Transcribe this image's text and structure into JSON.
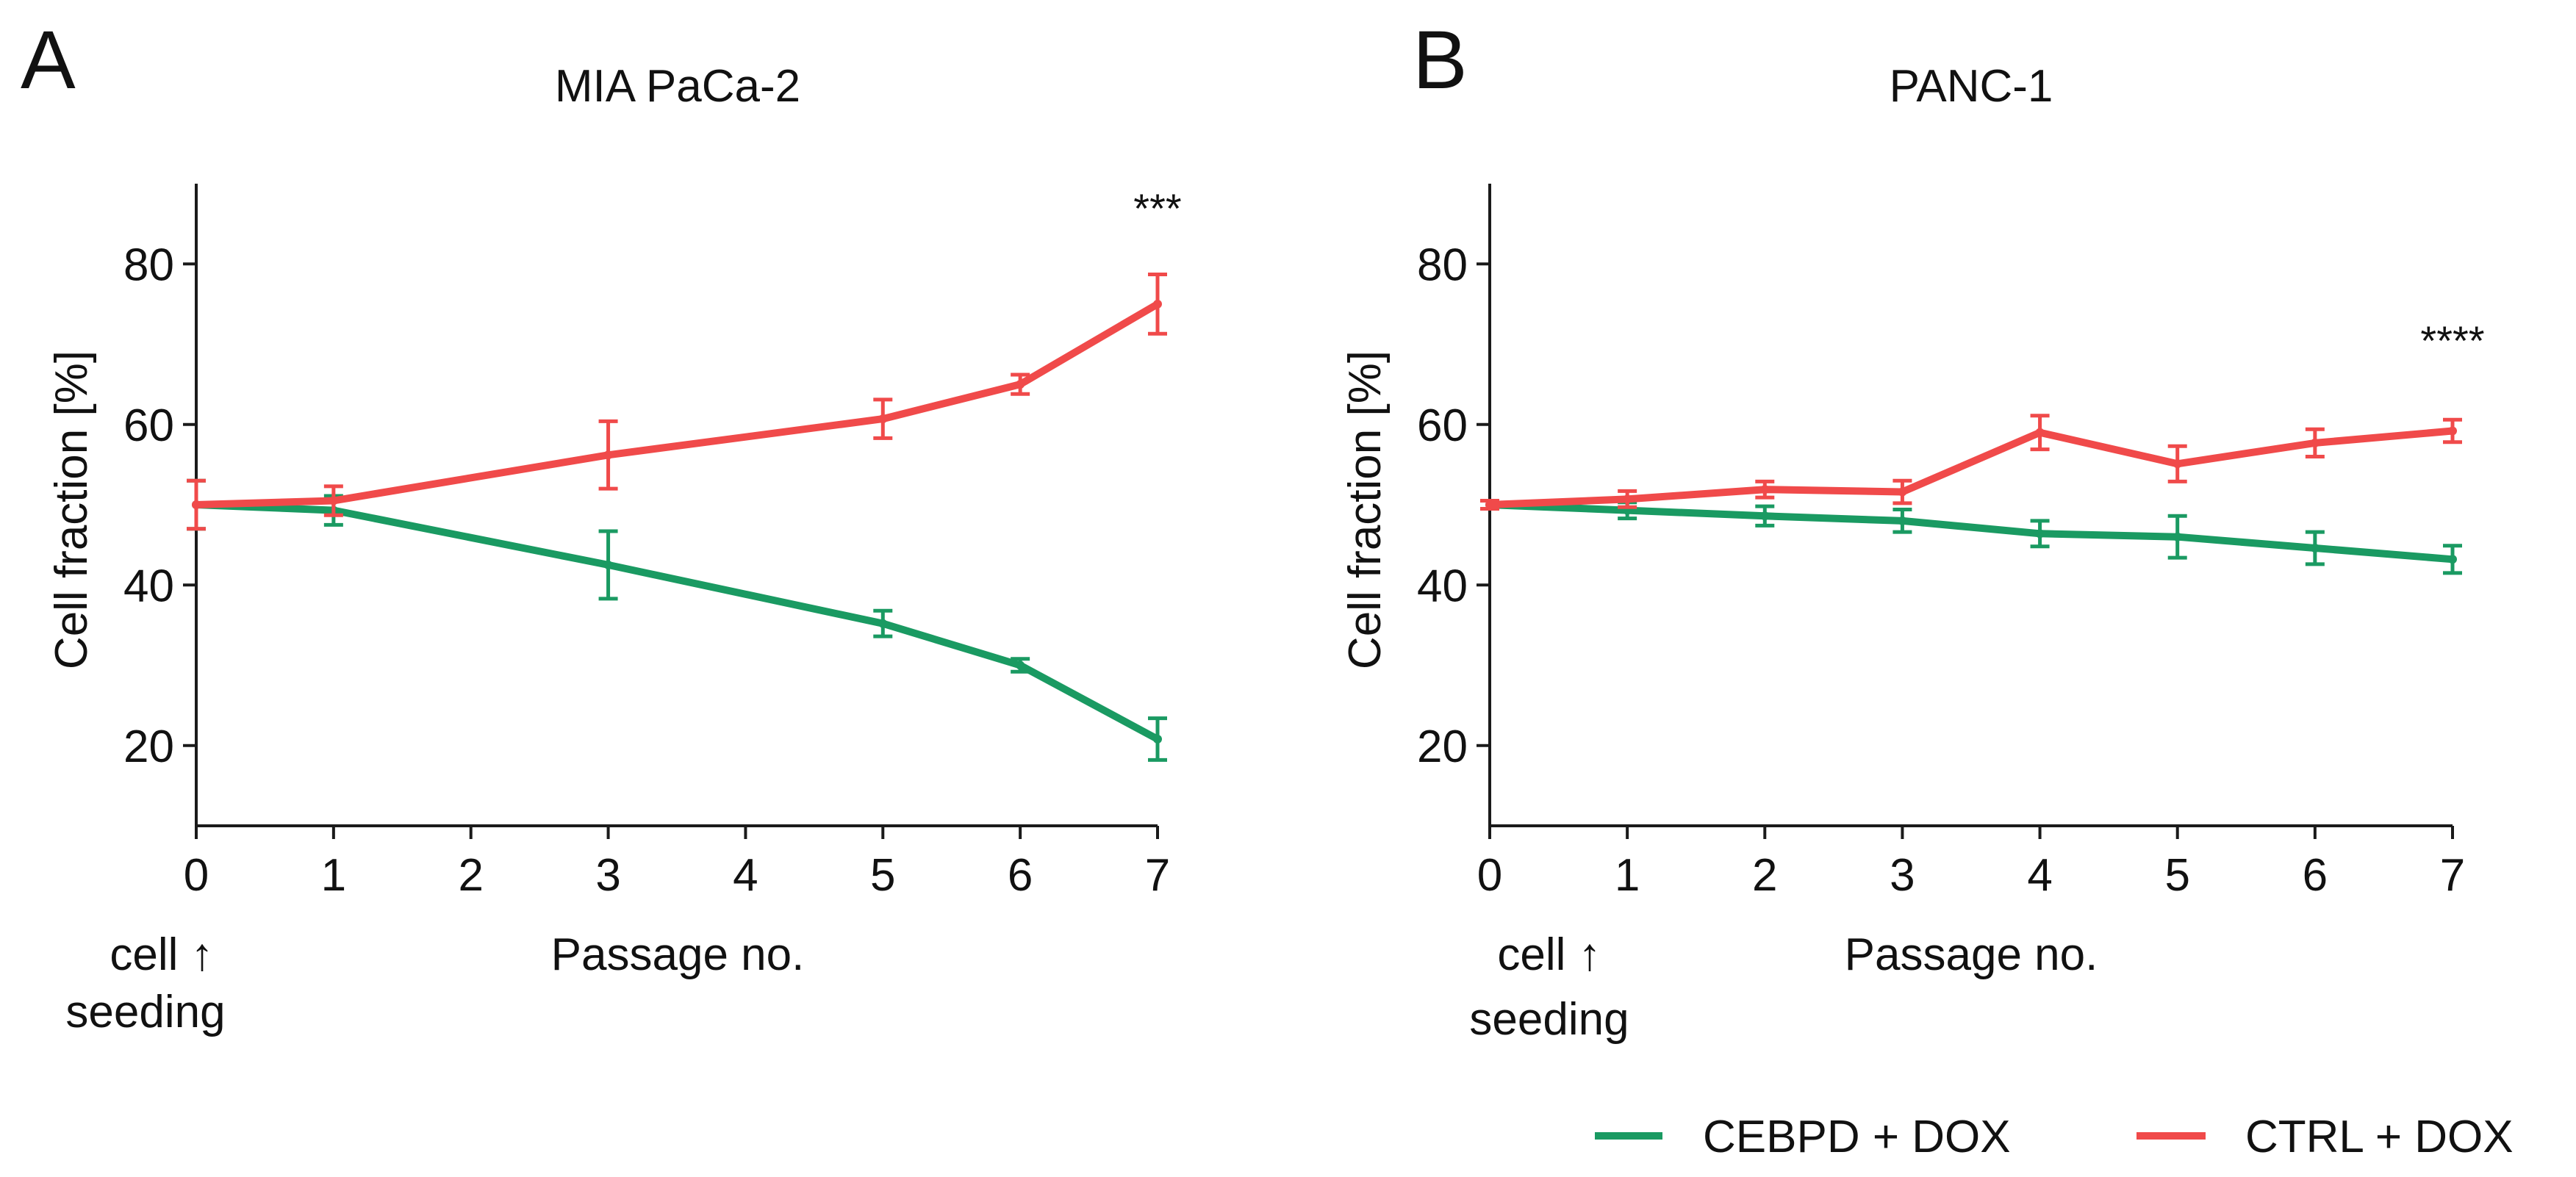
{
  "legend": {
    "items": [
      {
        "label": "CEBPD + DOX",
        "color": "#1a9a62"
      },
      {
        "label": "CTRL + DOX",
        "color": "#f04a4a"
      }
    ],
    "placement": "bottom-right"
  },
  "chart_data": [
    {
      "type": "line",
      "panel_label": "A",
      "title": "MIA PaCa-2",
      "xlabel": "Passage no.",
      "ylabel": "Cell fraction [%]",
      "xlim": [
        0,
        7
      ],
      "ylim": [
        10,
        90
      ],
      "xticks": [
        0,
        1,
        2,
        3,
        4,
        5,
        6,
        7
      ],
      "yticks": [
        20,
        40,
        60,
        80
      ],
      "seeding_note": [
        "cell ↑",
        "seeding"
      ],
      "significance": "***",
      "significance_x": 7,
      "significance_y": 87,
      "series": [
        {
          "name": "CEBPD + DOX",
          "color": "#1a9a62",
          "x": [
            0,
            1,
            3,
            5,
            6,
            7
          ],
          "values": [
            50,
            49.3,
            42.5,
            35.2,
            30.0,
            20.8
          ],
          "error": [
            3,
            1.8,
            4.2,
            1.6,
            0.8,
            2.6
          ]
        },
        {
          "name": "CTRL + DOX",
          "color": "#f04a4a",
          "x": [
            0,
            1,
            3,
            5,
            6,
            7
          ],
          "values": [
            50,
            50.5,
            56.2,
            60.7,
            65.0,
            75.0
          ],
          "error": [
            3,
            1.8,
            4.2,
            2.4,
            1.2,
            3.7
          ]
        }
      ]
    },
    {
      "type": "line",
      "panel_label": "B",
      "title": "PANC-1",
      "xlabel": "Passage no.",
      "ylabel": "Cell fraction [%]",
      "xlim": [
        0,
        7
      ],
      "ylim": [
        10,
        90
      ],
      "xticks": [
        0,
        1,
        2,
        3,
        4,
        5,
        6,
        7
      ],
      "yticks": [
        20,
        40,
        60,
        80
      ],
      "seeding_note": [
        "cell ↑",
        "seeding"
      ],
      "significance": "****",
      "significance_x": 7,
      "significance_y": 70.5,
      "series": [
        {
          "name": "CEBPD + DOX",
          "color": "#1a9a62",
          "x": [
            0,
            1,
            2,
            3,
            4,
            5,
            6,
            7
          ],
          "values": [
            50,
            49.3,
            48.6,
            48.0,
            46.4,
            46.0,
            44.6,
            43.2
          ],
          "error": [
            0.5,
            1.0,
            1.2,
            1.4,
            1.6,
            2.6,
            2.0,
            1.7
          ]
        },
        {
          "name": "CTRL + DOX",
          "color": "#f04a4a",
          "x": [
            0,
            1,
            2,
            3,
            4,
            5,
            6,
            7
          ],
          "values": [
            50,
            50.7,
            51.9,
            51.6,
            59.0,
            55.1,
            57.7,
            59.2
          ],
          "error": [
            0.5,
            1.0,
            1.0,
            1.4,
            2.1,
            2.2,
            1.7,
            1.4
          ]
        }
      ]
    }
  ]
}
